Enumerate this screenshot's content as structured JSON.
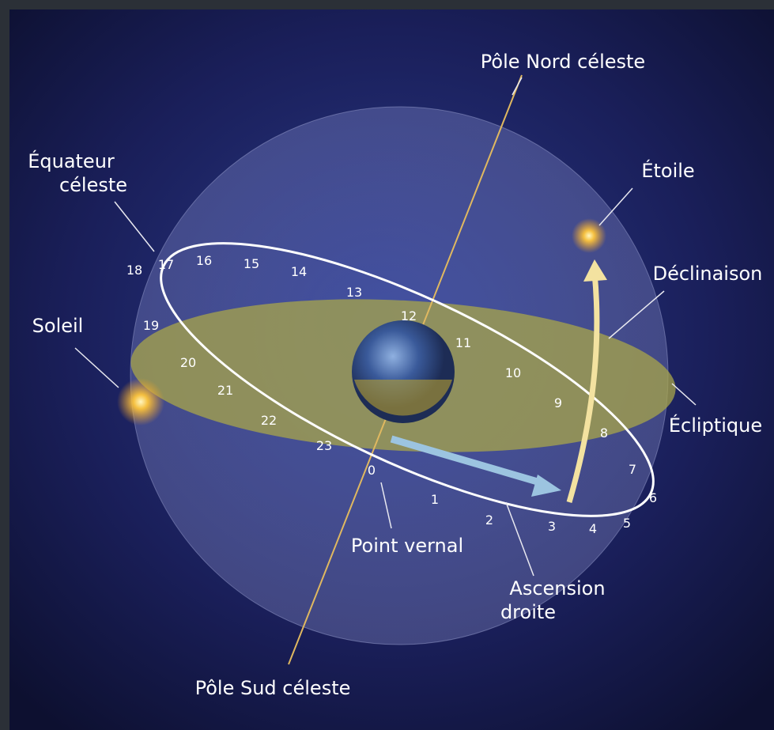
{
  "labels": {
    "north_pole": "Pôle Nord céleste",
    "star": "Étoile",
    "declination": "Déclinaison",
    "ecliptic": "Écliptique",
    "right_ascension": [
      "Ascension",
      "droite"
    ],
    "vernal_point": "Point vernal",
    "south_pole": "Pôle Sud céleste",
    "sun": "Soleil",
    "celestial_equator": [
      "Équateur",
      "céleste"
    ]
  },
  "hours": [
    "0",
    "1",
    "2",
    "3",
    "4",
    "5",
    "6",
    "7",
    "8",
    "9",
    "10",
    "11",
    "12",
    "13",
    "14",
    "15",
    "16",
    "17",
    "18",
    "19",
    "20",
    "21",
    "22",
    "23"
  ]
}
